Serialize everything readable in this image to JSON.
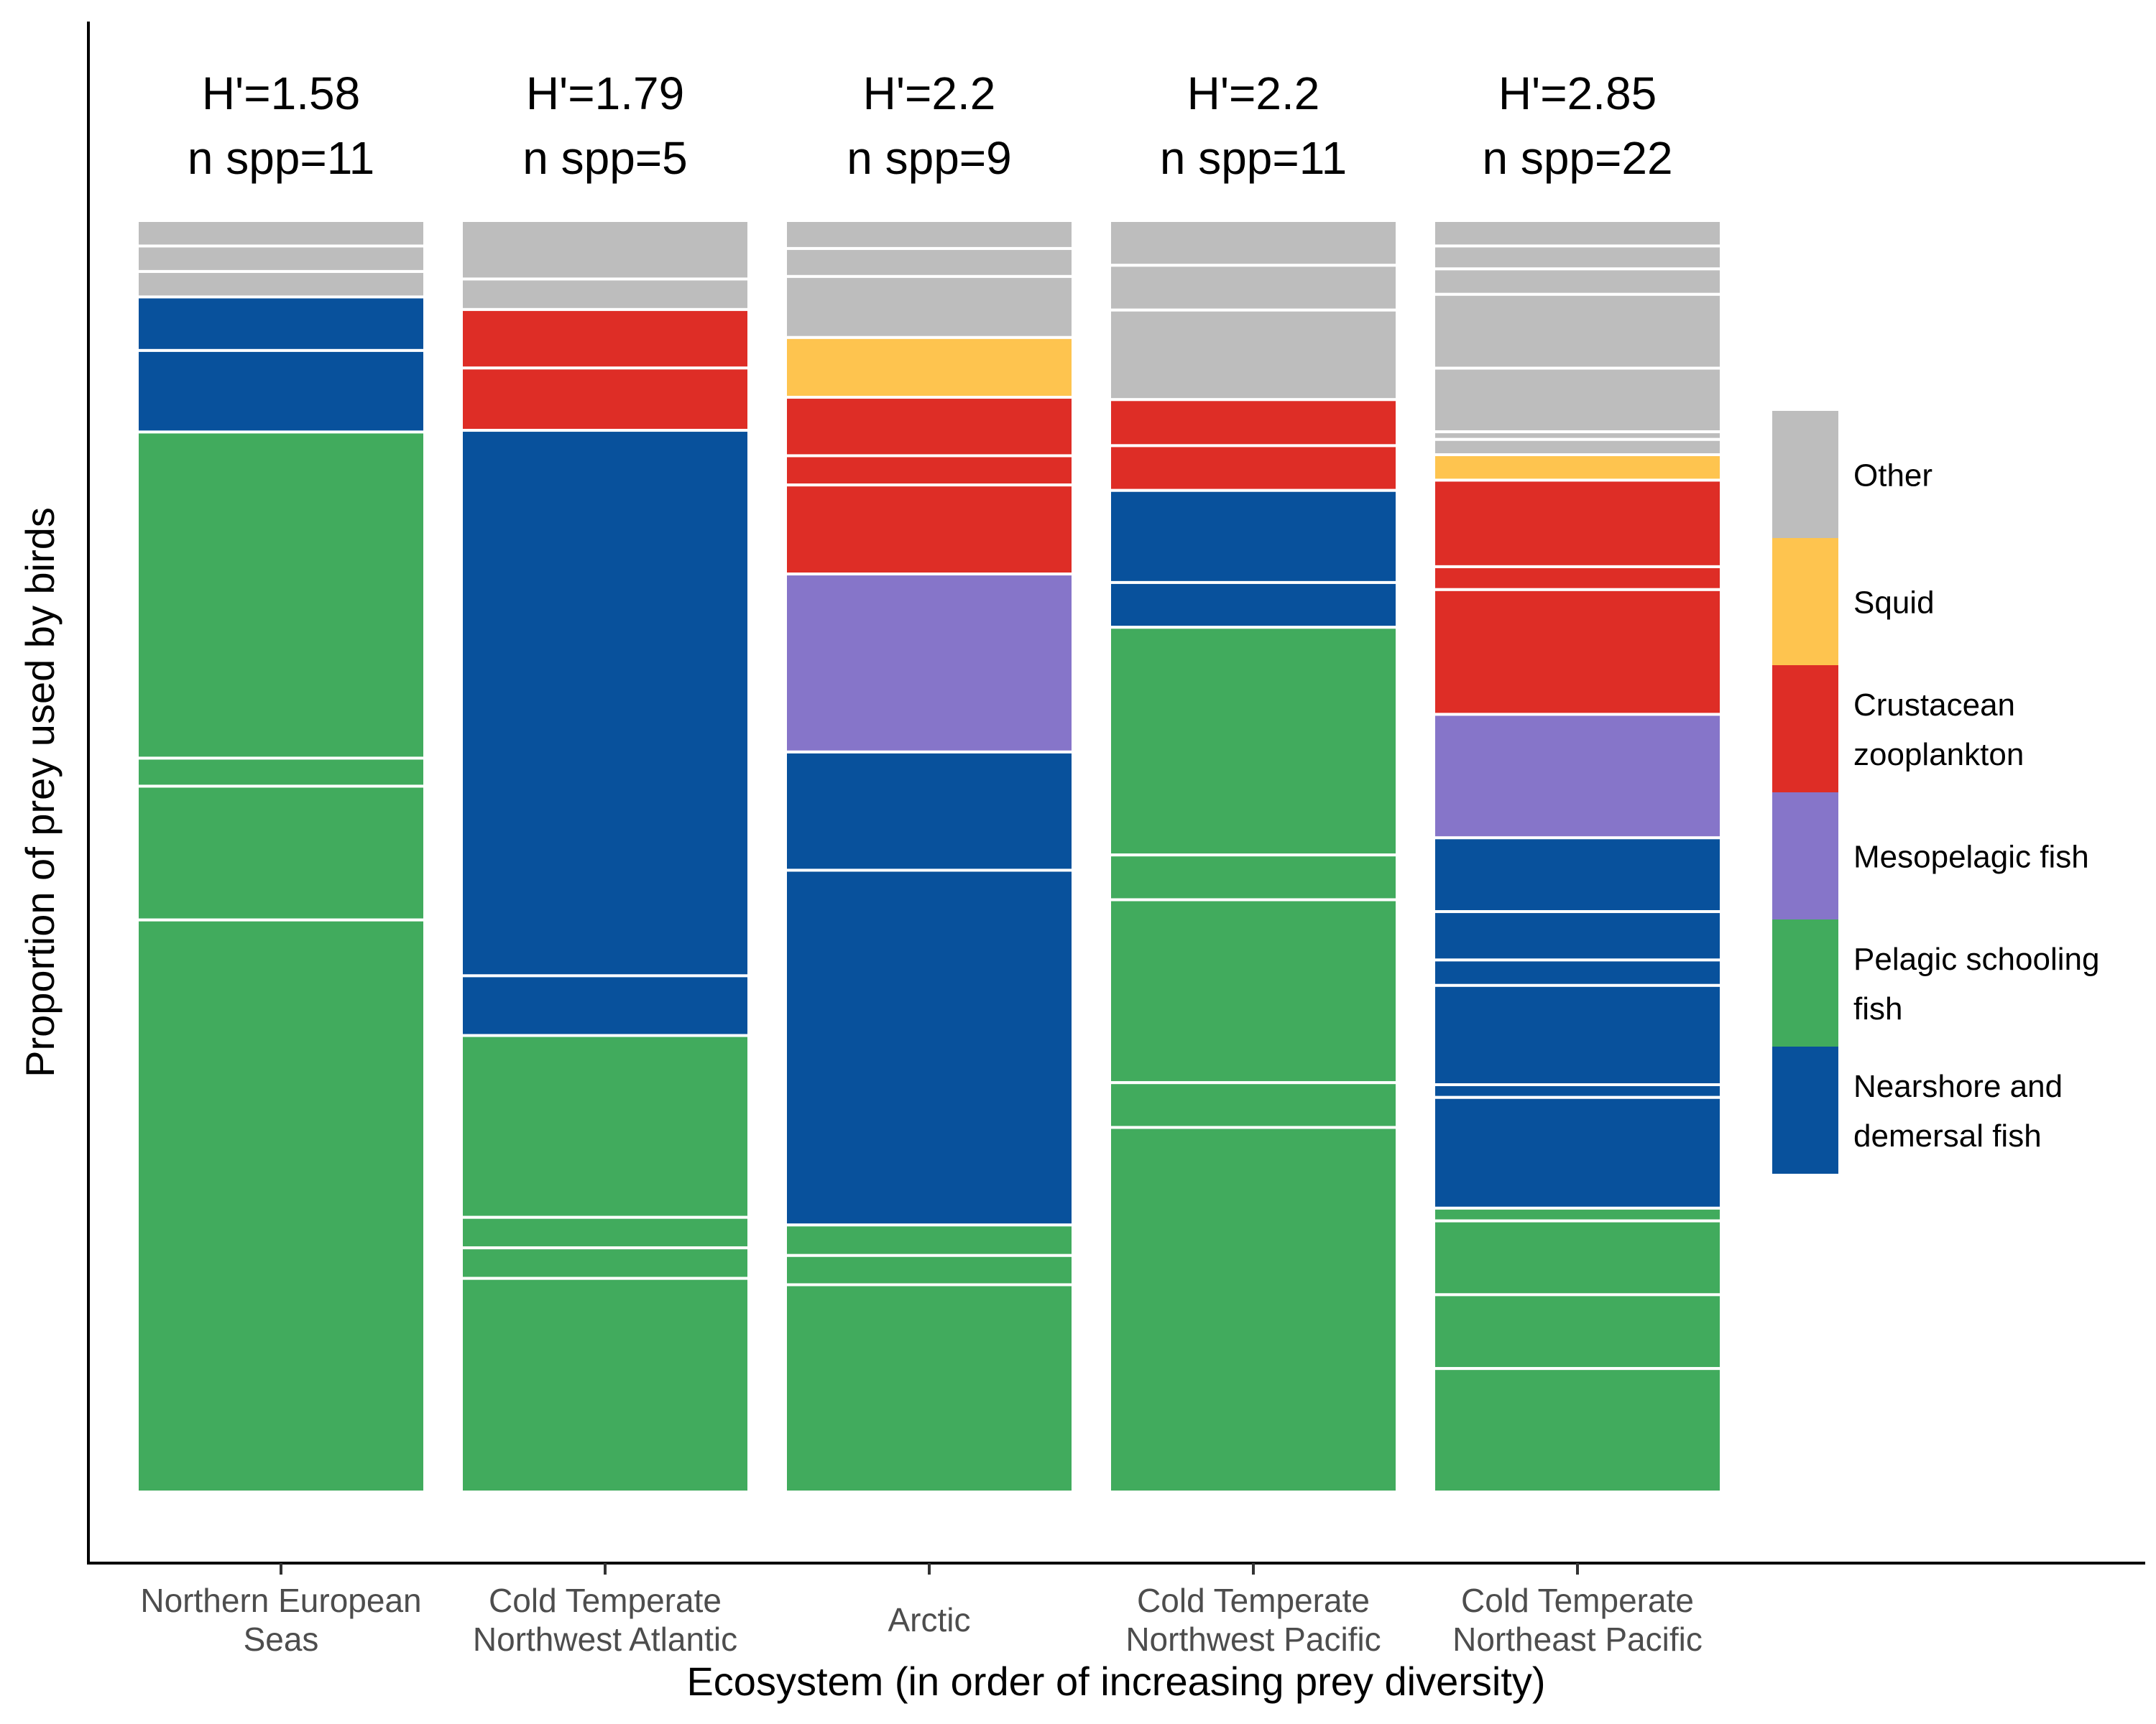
{
  "chart_data": {
    "type": "bar",
    "stacked": true,
    "normalized": true,
    "xlabel": "Ecosystem (in order of increasing prey diversity)",
    "ylabel": "Proportion of prey used by birds",
    "grid": false,
    "legend_position": "right",
    "legend": [
      {
        "group": "Other",
        "label_lines": [
          "Other"
        ],
        "color": "#BDBDBD"
      },
      {
        "group": "Squid",
        "label_lines": [
          "Squid"
        ],
        "color": "#FEC44F"
      },
      {
        "group": "Crustacean",
        "label_lines": [
          "Crustacean",
          "zooplankton"
        ],
        "color": "#DE2D26"
      },
      {
        "group": "Mesopelagic",
        "label_lines": [
          "Mesopelagic fish"
        ],
        "color": "#8675C9"
      },
      {
        "group": "Pelagic",
        "label_lines": [
          "Pelagic schooling",
          "fish"
        ],
        "color": "#41AB5D"
      },
      {
        "group": "Nearshore",
        "label_lines": [
          "Nearshore and",
          "demersal fish"
        ],
        "color": "#08519C"
      }
    ],
    "bars": [
      {
        "category_lines": [
          "Northern European",
          "Seas"
        ],
        "annotation_lines": [
          "H'=1.58",
          "n spp=11"
        ],
        "segments": [
          {
            "group": "Other",
            "value": 0.02
          },
          {
            "group": "Other",
            "value": 0.02
          },
          {
            "group": "Other",
            "value": 0.02
          },
          {
            "group": "Nearshore",
            "value": 0.042
          },
          {
            "group": "Nearshore",
            "value": 0.064
          },
          {
            "group": "Pelagic",
            "value": 0.256
          },
          {
            "group": "Pelagic",
            "value": 0.022
          },
          {
            "group": "Pelagic",
            "value": 0.105
          },
          {
            "group": "Pelagic",
            "value": 0.449
          }
        ]
      },
      {
        "category_lines": [
          "Cold Temperate",
          "Northwest Atlantic"
        ],
        "annotation_lines": [
          "H'=1.79",
          "n spp=5"
        ],
        "segments": [
          {
            "group": "Other",
            "value": 0.046
          },
          {
            "group": "Other",
            "value": 0.024
          },
          {
            "group": "Crustacean",
            "value": 0.046
          },
          {
            "group": "Crustacean",
            "value": 0.049
          },
          {
            "group": "Nearshore",
            "value": 0.429
          },
          {
            "group": "Nearshore",
            "value": 0.047
          },
          {
            "group": "Pelagic",
            "value": 0.143
          },
          {
            "group": "Pelagic",
            "value": 0.024
          },
          {
            "group": "Pelagic",
            "value": 0.024
          },
          {
            "group": "Pelagic",
            "value": 0.168
          }
        ]
      },
      {
        "category_lines": [
          "Arctic"
        ],
        "annotation_lines": [
          "H'=2.2",
          "n spp=9"
        ],
        "segments": [
          {
            "group": "Other",
            "value": 0.022
          },
          {
            "group": "Other",
            "value": 0.022
          },
          {
            "group": "Other",
            "value": 0.048
          },
          {
            "group": "Squid",
            "value": 0.047
          },
          {
            "group": "Crustacean",
            "value": 0.046
          },
          {
            "group": "Crustacean",
            "value": 0.023
          },
          {
            "group": "Crustacean",
            "value": 0.07
          },
          {
            "group": "Mesopelagic",
            "value": 0.14
          },
          {
            "group": "Nearshore",
            "value": 0.093
          },
          {
            "group": "Nearshore",
            "value": 0.279
          },
          {
            "group": "Pelagic",
            "value": 0.024
          },
          {
            "group": "Pelagic",
            "value": 0.023
          },
          {
            "group": "Pelagic",
            "value": 0.163
          }
        ]
      },
      {
        "category_lines": [
          "Cold Temperate",
          "Northwest Pacific"
        ],
        "annotation_lines": [
          "H'=2.2",
          "n spp=11"
        ],
        "segments": [
          {
            "group": "Other",
            "value": 0.035
          },
          {
            "group": "Other",
            "value": 0.035
          },
          {
            "group": "Other",
            "value": 0.07
          },
          {
            "group": "Crustacean",
            "value": 0.036
          },
          {
            "group": "Crustacean",
            "value": 0.035
          },
          {
            "group": "Nearshore",
            "value": 0.072
          },
          {
            "group": "Nearshore",
            "value": 0.035
          },
          {
            "group": "Pelagic",
            "value": 0.178
          },
          {
            "group": "Pelagic",
            "value": 0.035
          },
          {
            "group": "Pelagic",
            "value": 0.143
          },
          {
            "group": "Pelagic",
            "value": 0.035
          },
          {
            "group": "Pelagic",
            "value": 0.285
          }
        ]
      },
      {
        "category_lines": [
          "Cold Temperate",
          "Northeast Pacific"
        ],
        "annotation_lines": [
          "H'=2.85",
          "n spp=22"
        ],
        "segments": [
          {
            "group": "Other",
            "value": 0.02
          },
          {
            "group": "Other",
            "value": 0.018
          },
          {
            "group": "Other",
            "value": 0.02
          },
          {
            "group": "Other",
            "value": 0.058
          },
          {
            "group": "Other",
            "value": 0.05
          },
          {
            "group": "Other",
            "value": 0.006
          },
          {
            "group": "Other",
            "value": 0.012
          },
          {
            "group": "Squid",
            "value": 0.02
          },
          {
            "group": "Crustacean",
            "value": 0.068
          },
          {
            "group": "Crustacean",
            "value": 0.018
          },
          {
            "group": "Crustacean",
            "value": 0.098
          },
          {
            "group": "Mesopelagic",
            "value": 0.097
          },
          {
            "group": "Nearshore",
            "value": 0.058
          },
          {
            "group": "Nearshore",
            "value": 0.038
          },
          {
            "group": "Nearshore",
            "value": 0.02
          },
          {
            "group": "Nearshore",
            "value": 0.078
          },
          {
            "group": "Nearshore",
            "value": 0.01
          },
          {
            "group": "Nearshore",
            "value": 0.087
          },
          {
            "group": "Pelagic",
            "value": 0.01
          },
          {
            "group": "Pelagic",
            "value": 0.058
          },
          {
            "group": "Pelagic",
            "value": 0.058
          },
          {
            "group": "Pelagic",
            "value": 0.097
          }
        ]
      }
    ]
  }
}
